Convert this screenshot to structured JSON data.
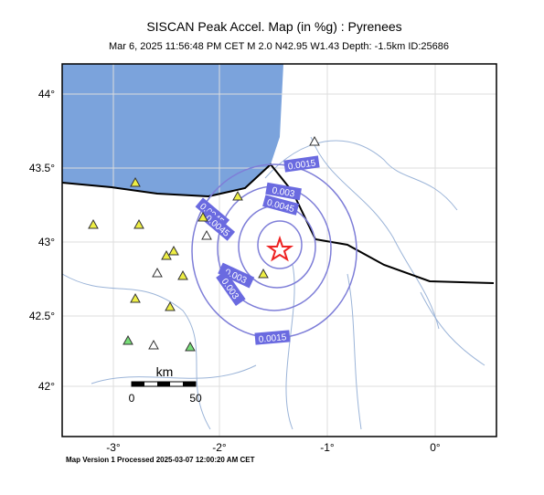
{
  "header": {
    "title": "SISCAN Peak Accel. Map (in %g) : Pyrenees",
    "subtitle": "Mar  6, 2025 11:56:48 PM CET   M 2.0   N42.95 W1.43   Depth: -1.5km   ID:25686"
  },
  "map": {
    "lat_ticks": [
      "44°",
      "43.5°",
      "43°",
      "42.5°",
      "42°"
    ],
    "lon_ticks": [
      "-3°",
      "-2°",
      "-1°",
      "0°"
    ],
    "contour_labels": [
      "0.0015",
      "0.003",
      "0.0045",
      "0.0045",
      "0.0045",
      "0.003",
      "0.003",
      "0.0015"
    ],
    "scale": {
      "unit": "km",
      "left": "0",
      "right": "50"
    }
  },
  "footer": "Map Version 1 Processed 2025-03-07 12:00:20 AM CET"
}
